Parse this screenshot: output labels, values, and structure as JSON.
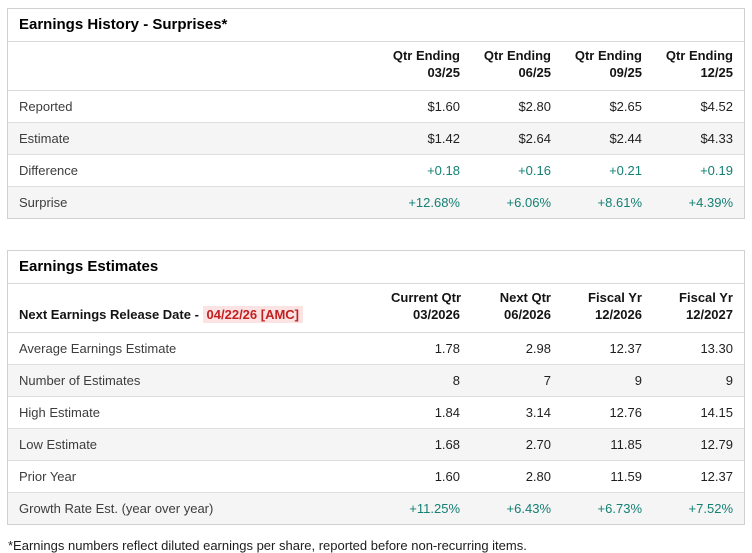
{
  "history": {
    "title": "Earnings History - Surprises*",
    "columns": [
      {
        "line1": "Qtr Ending",
        "line2": "03/25"
      },
      {
        "line1": "Qtr Ending",
        "line2": "06/25"
      },
      {
        "line1": "Qtr Ending",
        "line2": "09/25"
      },
      {
        "line1": "Qtr Ending",
        "line2": "12/25"
      }
    ],
    "rows": [
      {
        "label": "Reported",
        "values": [
          "$1.60",
          "$2.80",
          "$2.65",
          "$4.52"
        ]
      },
      {
        "label": "Estimate",
        "values": [
          "$1.42",
          "$2.64",
          "$2.44",
          "$4.33"
        ]
      },
      {
        "label": "Difference",
        "values": [
          "+0.18",
          "+0.16",
          "+0.21",
          "+0.19"
        ]
      },
      {
        "label": "Surprise",
        "values": [
          "+12.68%",
          "+6.06%",
          "+8.61%",
          "+4.39%"
        ]
      }
    ]
  },
  "estimates": {
    "title": "Earnings Estimates",
    "release_date_label": "Next Earnings Release Date - ",
    "release_date_value": "04/22/26 [AMC]",
    "columns": [
      {
        "line1": "Current Qtr",
        "line2": "03/2026"
      },
      {
        "line1": "Next Qtr",
        "line2": "06/2026"
      },
      {
        "line1": "Fiscal Yr",
        "line2": "12/2026"
      },
      {
        "line1": "Fiscal Yr",
        "line2": "12/2027"
      }
    ],
    "rows": [
      {
        "label": "Average Earnings Estimate",
        "values": [
          "1.78",
          "2.98",
          "12.37",
          "13.30"
        ]
      },
      {
        "label": "Number of Estimates",
        "values": [
          "8",
          "7",
          "9",
          "9"
        ]
      },
      {
        "label": "High Estimate",
        "values": [
          "1.84",
          "3.14",
          "12.76",
          "14.15"
        ]
      },
      {
        "label": "Low Estimate",
        "values": [
          "1.68",
          "2.70",
          "11.85",
          "12.79"
        ]
      },
      {
        "label": "Prior Year",
        "values": [
          "1.60",
          "2.80",
          "11.59",
          "12.37"
        ]
      },
      {
        "label": "Growth Rate Est. (year over year)",
        "values": [
          "+11.25%",
          "+6.43%",
          "+6.73%",
          "+7.52%"
        ]
      }
    ]
  },
  "footnote": "*Earnings numbers reflect diluted earnings per share, reported before non-recurring items.",
  "colors": {
    "positive": "#148073",
    "alert_text": "#c32020",
    "alert_bg": "#fbe3e3",
    "stripe": "#f5f5f5",
    "border": "#d2d2d2"
  }
}
